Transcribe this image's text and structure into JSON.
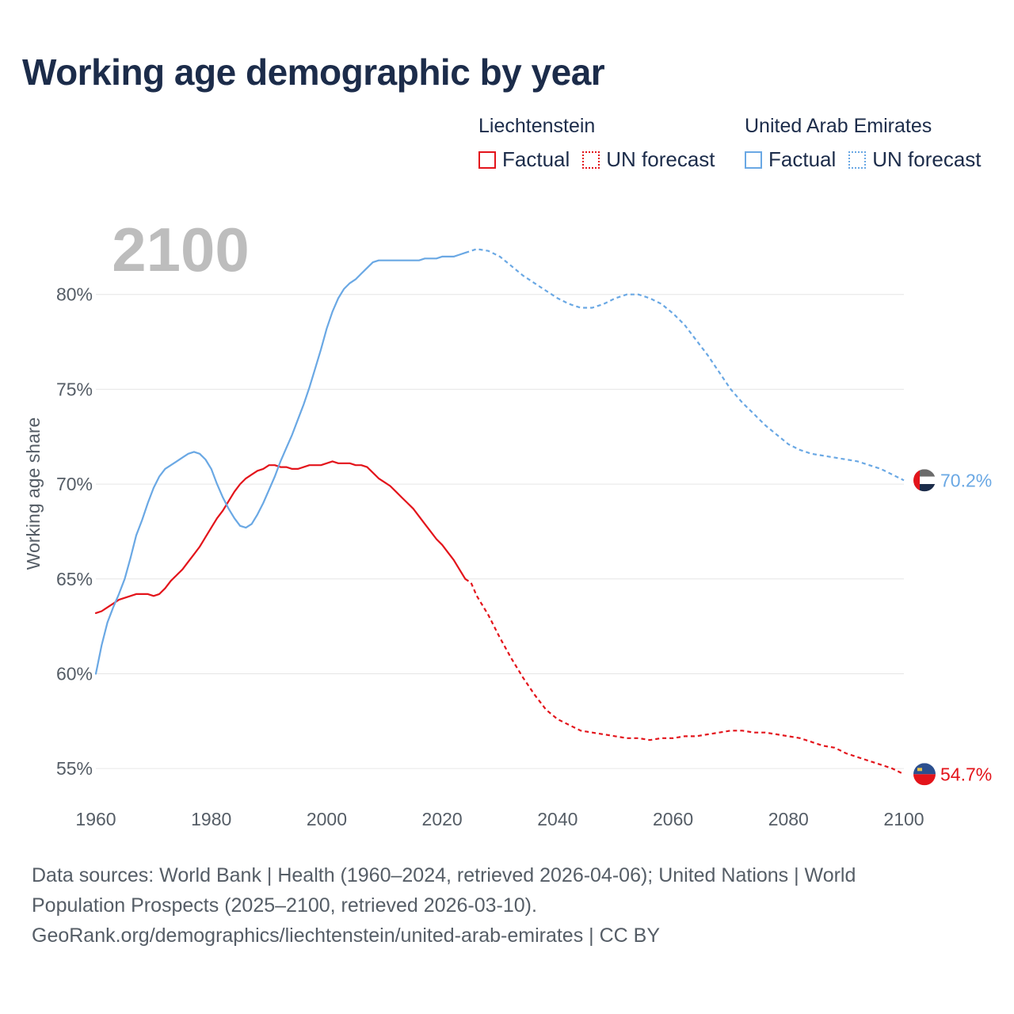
{
  "title": "Working age demographic by year",
  "legend": [
    {
      "country": "Liechtenstein",
      "factual": "Factual",
      "forecast": "UN forecast",
      "color": "#e3141b"
    },
    {
      "country": "United Arab Emirates",
      "factual": "Factual",
      "forecast": "UN forecast",
      "color": "#6aa8e4"
    }
  ],
  "year_watermark": "2100",
  "colors": {
    "lie": "#e3141b",
    "uae": "#6aa8e4",
    "grid": "#e6e6e6",
    "watermark": "#bdbdbd",
    "axis_text": "#555d66"
  },
  "chart_data": {
    "type": "line",
    "title": "Working age demographic by year",
    "xlabel": "",
    "ylabel": "Working age share",
    "xlim": [
      1960,
      2100
    ],
    "ylim": [
      53,
      84
    ],
    "x_ticks": [
      1960,
      1980,
      2000,
      2020,
      2040,
      2060,
      2080,
      2100
    ],
    "y_ticks": [
      55,
      60,
      65,
      70,
      75,
      80
    ],
    "y_tick_labels": [
      "55%",
      "60%",
      "65%",
      "70%",
      "75%",
      "80%"
    ],
    "factual_range": [
      1960,
      2024
    ],
    "forecast_range": [
      2024,
      2100
    ],
    "series": [
      {
        "name": "Liechtenstein",
        "color": "#e3141b",
        "end_label": "54.7%",
        "factual": [
          [
            1960,
            63.2
          ],
          [
            1961,
            63.3
          ],
          [
            1962,
            63.5
          ],
          [
            1963,
            63.7
          ],
          [
            1964,
            63.9
          ],
          [
            1965,
            64.0
          ],
          [
            1966,
            64.1
          ],
          [
            1967,
            64.2
          ],
          [
            1968,
            64.2
          ],
          [
            1969,
            64.2
          ],
          [
            1970,
            64.1
          ],
          [
            1971,
            64.2
          ],
          [
            1972,
            64.5
          ],
          [
            1973,
            64.9
          ],
          [
            1974,
            65.2
          ],
          [
            1975,
            65.5
          ],
          [
            1976,
            65.9
          ],
          [
            1977,
            66.3
          ],
          [
            1978,
            66.7
          ],
          [
            1979,
            67.2
          ],
          [
            1980,
            67.7
          ],
          [
            1981,
            68.2
          ],
          [
            1982,
            68.6
          ],
          [
            1983,
            69.1
          ],
          [
            1984,
            69.6
          ],
          [
            1985,
            70.0
          ],
          [
            1986,
            70.3
          ],
          [
            1987,
            70.5
          ],
          [
            1988,
            70.7
          ],
          [
            1989,
            70.8
          ],
          [
            1990,
            71.0
          ],
          [
            1991,
            71.0
          ],
          [
            1992,
            70.9
          ],
          [
            1993,
            70.9
          ],
          [
            1994,
            70.8
          ],
          [
            1995,
            70.8
          ],
          [
            1996,
            70.9
          ],
          [
            1997,
            71.0
          ],
          [
            1998,
            71.0
          ],
          [
            1999,
            71.0
          ],
          [
            2000,
            71.1
          ],
          [
            2001,
            71.2
          ],
          [
            2002,
            71.1
          ],
          [
            2003,
            71.1
          ],
          [
            2004,
            71.1
          ],
          [
            2005,
            71.0
          ],
          [
            2006,
            71.0
          ],
          [
            2007,
            70.9
          ],
          [
            2008,
            70.6
          ],
          [
            2009,
            70.3
          ],
          [
            2010,
            70.1
          ],
          [
            2011,
            69.9
          ],
          [
            2012,
            69.6
          ],
          [
            2013,
            69.3
          ],
          [
            2014,
            69.0
          ],
          [
            2015,
            68.7
          ],
          [
            2016,
            68.3
          ],
          [
            2017,
            67.9
          ],
          [
            2018,
            67.5
          ],
          [
            2019,
            67.1
          ],
          [
            2020,
            66.8
          ],
          [
            2021,
            66.4
          ],
          [
            2022,
            66.0
          ],
          [
            2023,
            65.5
          ],
          [
            2024,
            65.0
          ]
        ],
        "forecast": [
          [
            2024,
            65.0
          ],
          [
            2025,
            64.8
          ],
          [
            2026,
            64.1
          ],
          [
            2028,
            63.1
          ],
          [
            2030,
            61.9
          ],
          [
            2032,
            60.8
          ],
          [
            2034,
            59.8
          ],
          [
            2036,
            58.9
          ],
          [
            2038,
            58.1
          ],
          [
            2040,
            57.6
          ],
          [
            2042,
            57.3
          ],
          [
            2044,
            57.0
          ],
          [
            2046,
            56.9
          ],
          [
            2048,
            56.8
          ],
          [
            2050,
            56.7
          ],
          [
            2052,
            56.6
          ],
          [
            2054,
            56.6
          ],
          [
            2056,
            56.5
          ],
          [
            2058,
            56.6
          ],
          [
            2060,
            56.6
          ],
          [
            2062,
            56.7
          ],
          [
            2064,
            56.7
          ],
          [
            2066,
            56.8
          ],
          [
            2068,
            56.9
          ],
          [
            2070,
            57.0
          ],
          [
            2072,
            57.0
          ],
          [
            2074,
            56.9
          ],
          [
            2076,
            56.9
          ],
          [
            2078,
            56.8
          ],
          [
            2080,
            56.7
          ],
          [
            2082,
            56.6
          ],
          [
            2084,
            56.4
          ],
          [
            2086,
            56.2
          ],
          [
            2088,
            56.1
          ],
          [
            2090,
            55.8
          ],
          [
            2092,
            55.6
          ],
          [
            2094,
            55.4
          ],
          [
            2096,
            55.2
          ],
          [
            2098,
            55.0
          ],
          [
            2100,
            54.7
          ]
        ]
      },
      {
        "name": "United Arab Emirates",
        "color": "#6aa8e4",
        "end_label": "70.2%",
        "factual": [
          [
            1960,
            60.0
          ],
          [
            1961,
            61.5
          ],
          [
            1962,
            62.7
          ],
          [
            1963,
            63.5
          ],
          [
            1964,
            64.2
          ],
          [
            1965,
            65.0
          ],
          [
            1966,
            66.1
          ],
          [
            1967,
            67.3
          ],
          [
            1968,
            68.1
          ],
          [
            1969,
            69.0
          ],
          [
            1970,
            69.8
          ],
          [
            1971,
            70.4
          ],
          [
            1972,
            70.8
          ],
          [
            1973,
            71.0
          ],
          [
            1974,
            71.2
          ],
          [
            1975,
            71.4
          ],
          [
            1976,
            71.6
          ],
          [
            1977,
            71.7
          ],
          [
            1978,
            71.6
          ],
          [
            1979,
            71.3
          ],
          [
            1980,
            70.8
          ],
          [
            1981,
            70.0
          ],
          [
            1982,
            69.3
          ],
          [
            1983,
            68.7
          ],
          [
            1984,
            68.2
          ],
          [
            1985,
            67.8
          ],
          [
            1986,
            67.7
          ],
          [
            1987,
            67.9
          ],
          [
            1988,
            68.4
          ],
          [
            1989,
            69.0
          ],
          [
            1990,
            69.7
          ],
          [
            1991,
            70.4
          ],
          [
            1992,
            71.2
          ],
          [
            1993,
            71.9
          ],
          [
            1994,
            72.6
          ],
          [
            1995,
            73.4
          ],
          [
            1996,
            74.2
          ],
          [
            1997,
            75.1
          ],
          [
            1998,
            76.1
          ],
          [
            1999,
            77.1
          ],
          [
            2000,
            78.2
          ],
          [
            2001,
            79.1
          ],
          [
            2002,
            79.8
          ],
          [
            2003,
            80.3
          ],
          [
            2004,
            80.6
          ],
          [
            2005,
            80.8
          ],
          [
            2006,
            81.1
          ],
          [
            2007,
            81.4
          ],
          [
            2008,
            81.7
          ],
          [
            2009,
            81.8
          ],
          [
            2010,
            81.8
          ],
          [
            2011,
            81.8
          ],
          [
            2012,
            81.8
          ],
          [
            2013,
            81.8
          ],
          [
            2014,
            81.8
          ],
          [
            2015,
            81.8
          ],
          [
            2016,
            81.8
          ],
          [
            2017,
            81.9
          ],
          [
            2018,
            81.9
          ],
          [
            2019,
            81.9
          ],
          [
            2020,
            82.0
          ],
          [
            2021,
            82.0
          ],
          [
            2022,
            82.0
          ],
          [
            2023,
            82.1
          ],
          [
            2024,
            82.2
          ]
        ],
        "forecast": [
          [
            2024,
            82.2
          ],
          [
            2026,
            82.4
          ],
          [
            2028,
            82.3
          ],
          [
            2030,
            82.0
          ],
          [
            2032,
            81.5
          ],
          [
            2034,
            81.0
          ],
          [
            2036,
            80.6
          ],
          [
            2038,
            80.2
          ],
          [
            2040,
            79.8
          ],
          [
            2042,
            79.5
          ],
          [
            2044,
            79.3
          ],
          [
            2046,
            79.3
          ],
          [
            2048,
            79.5
          ],
          [
            2050,
            79.8
          ],
          [
            2052,
            80.0
          ],
          [
            2054,
            80.0
          ],
          [
            2056,
            79.8
          ],
          [
            2058,
            79.5
          ],
          [
            2060,
            79.0
          ],
          [
            2062,
            78.4
          ],
          [
            2064,
            77.6
          ],
          [
            2066,
            76.8
          ],
          [
            2068,
            75.9
          ],
          [
            2070,
            75.0
          ],
          [
            2072,
            74.3
          ],
          [
            2074,
            73.7
          ],
          [
            2076,
            73.1
          ],
          [
            2078,
            72.6
          ],
          [
            2080,
            72.1
          ],
          [
            2082,
            71.8
          ],
          [
            2084,
            71.6
          ],
          [
            2086,
            71.5
          ],
          [
            2088,
            71.4
          ],
          [
            2090,
            71.3
          ],
          [
            2092,
            71.2
          ],
          [
            2094,
            71.0
          ],
          [
            2096,
            70.8
          ],
          [
            2098,
            70.5
          ],
          [
            2100,
            70.2
          ]
        ]
      }
    ]
  },
  "source": {
    "line1": "Data sources: World Bank | Health (1960–2024, retrieved 2026-04-06); United Nations | World",
    "line2": "Population Prospects (2025–2100, retrieved 2026-03-10).",
    "line3": "GeoRank.org/demographics/liechtenstein/united-arab-emirates | CC BY"
  }
}
